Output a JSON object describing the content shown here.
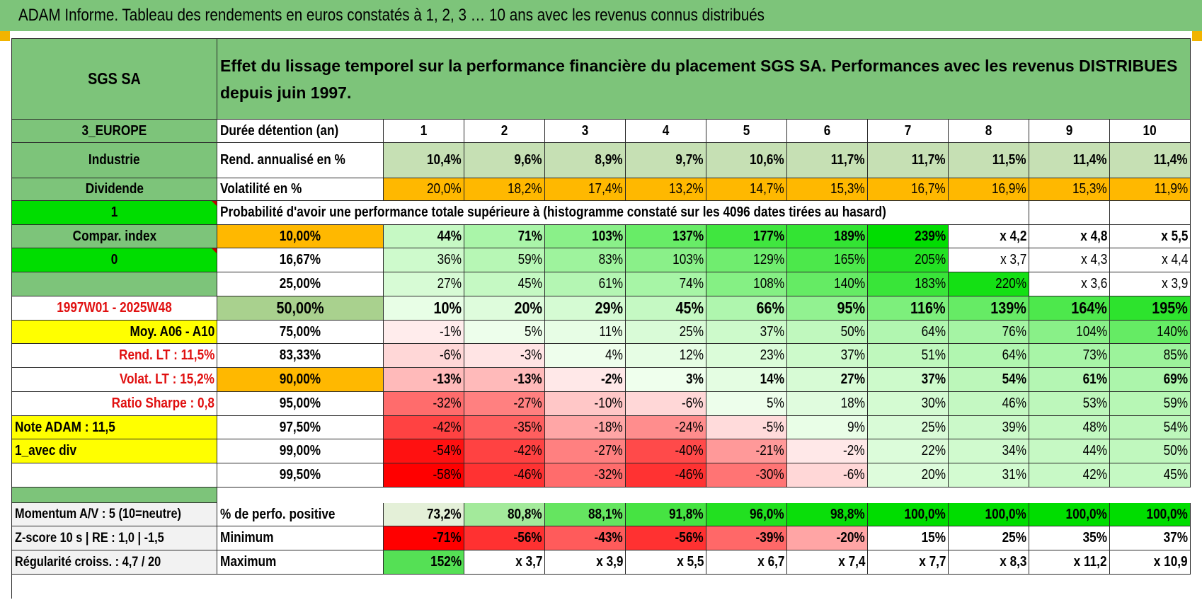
{
  "report_title": "ADAM Informe. Tableau des rendements en euros constatés à 1, 2, 3 … 10 ans avec les revenus connus distribués",
  "colors": {
    "header_green": "#7dc47a",
    "bright_green": "#00dd00",
    "orange": "#ffb800",
    "yellow": "#ffff00",
    "red_text": "#e01010"
  },
  "sidebar": {
    "name": "SGS SA",
    "region": "3_EUROPE",
    "sector": "Industrie",
    "type": "Dividende",
    "flag_a": "1",
    "compar_index": "Compar. index",
    "flag_b": "0",
    "period": "1997W01 - 2025W48",
    "moy": "Moy. A06 - A10",
    "rend_lt": "Rend. LT :    11,5%",
    "volat_lt": "Volat. LT :    15,2%",
    "sharpe": "Ratio Sharpe :     0,8",
    "note": "Note ADAM : 11,5",
    "avec_div": "1_avec div",
    "momentum": "Momentum A/V : 5 (10=neutre)",
    "zscore": "Z-score 10 s | RE : 1,0 | -1,5",
    "regularite": "Régularité croiss. : 4,7 / 20"
  },
  "header_text": "Effet du lissage temporel sur la performance financière du placement SGS SA. Performances avec les revenus DISTRIBUES depuis juin 1997.",
  "duree_label": "Durée détention (an)",
  "years": [
    "1",
    "2",
    "3",
    "4",
    "5",
    "6",
    "7",
    "8",
    "9",
    "10"
  ],
  "rend_label": "Rend. annualisé en %",
  "rend_values": [
    "10,4%",
    "9,6%",
    "8,9%",
    "9,7%",
    "10,6%",
    "11,7%",
    "11,7%",
    "11,5%",
    "11,4%",
    "11,4%"
  ],
  "vol_label": "Volatilité en %",
  "vol_values": [
    "20,0%",
    "18,2%",
    "17,4%",
    "13,2%",
    "14,7%",
    "15,3%",
    "16,7%",
    "16,9%",
    "15,3%",
    "11,9%"
  ],
  "prob_label": "Probabilité d'avoir une performance totale supérieure à (histogramme constaté sur les 4096 dates tirées au hasard)",
  "prob_rows": [
    {
      "pct": "10,00%",
      "values": [
        "44%",
        "71%",
        "103%",
        "137%",
        "177%",
        "189%",
        "239%",
        "x 4,2",
        "x 4,8",
        "x 5,5"
      ]
    },
    {
      "pct": "16,67%",
      "values": [
        "36%",
        "59%",
        "83%",
        "103%",
        "129%",
        "165%",
        "205%",
        "x 3,7",
        "x 4,3",
        "x 4,4"
      ]
    },
    {
      "pct": "25,00%",
      "values": [
        "27%",
        "45%",
        "61%",
        "74%",
        "108%",
        "140%",
        "183%",
        "220%",
        "x 3,6",
        "x 3,9"
      ]
    },
    {
      "pct": "50,00%",
      "values": [
        "10%",
        "20%",
        "29%",
        "45%",
        "66%",
        "95%",
        "116%",
        "139%",
        "164%",
        "195%"
      ]
    },
    {
      "pct": "75,00%",
      "values": [
        "-1%",
        "5%",
        "11%",
        "25%",
        "37%",
        "50%",
        "64%",
        "76%",
        "104%",
        "140%"
      ]
    },
    {
      "pct": "83,33%",
      "values": [
        "-6%",
        "-3%",
        "4%",
        "12%",
        "23%",
        "37%",
        "51%",
        "64%",
        "73%",
        "85%"
      ]
    },
    {
      "pct": "90,00%",
      "values": [
        "-13%",
        "-13%",
        "-2%",
        "3%",
        "14%",
        "27%",
        "37%",
        "54%",
        "61%",
        "69%"
      ]
    },
    {
      "pct": "95,00%",
      "values": [
        "-32%",
        "-27%",
        "-10%",
        "-6%",
        "5%",
        "18%",
        "30%",
        "46%",
        "53%",
        "59%"
      ]
    },
    {
      "pct": "97,50%",
      "values": [
        "-42%",
        "-35%",
        "-18%",
        "-24%",
        "-5%",
        "9%",
        "25%",
        "39%",
        "48%",
        "54%"
      ]
    },
    {
      "pct": "99,00%",
      "values": [
        "-54%",
        "-42%",
        "-27%",
        "-40%",
        "-21%",
        "-2%",
        "22%",
        "34%",
        "44%",
        "50%"
      ]
    },
    {
      "pct": "99,50%",
      "values": [
        "-58%",
        "-46%",
        "-32%",
        "-46%",
        "-30%",
        "-6%",
        "20%",
        "31%",
        "42%",
        "45%"
      ]
    }
  ],
  "bottom_rows": [
    {
      "label": "% de perfo. positive",
      "values": [
        "73,2%",
        "80,8%",
        "88,1%",
        "91,8%",
        "96,0%",
        "98,8%",
        "100,0%",
        "100,0%",
        "100,0%",
        "100,0%"
      ]
    },
    {
      "label": "Minimum",
      "values": [
        "-71%",
        "-56%",
        "-43%",
        "-56%",
        "-39%",
        "-20%",
        "15%",
        "25%",
        "35%",
        "37%"
      ]
    },
    {
      "label": "Maximum",
      "values": [
        "152%",
        "x 3,7",
        "x 3,9",
        "x 5,5",
        "x 6,7",
        "x 7,4",
        "x 7,7",
        "x 8,3",
        "x 11,2",
        "x 10,9"
      ]
    }
  ]
}
